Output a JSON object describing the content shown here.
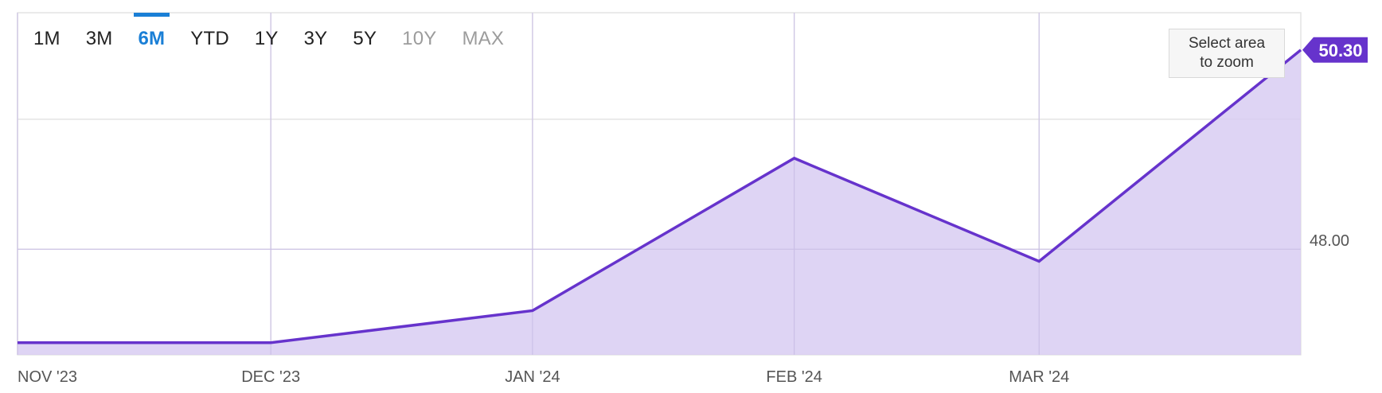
{
  "range_selector": {
    "options": [
      {
        "label": "1M",
        "state": "normal"
      },
      {
        "label": "3M",
        "state": "normal"
      },
      {
        "label": "6M",
        "state": "active"
      },
      {
        "label": "YTD",
        "state": "normal"
      },
      {
        "label": "1Y",
        "state": "normal"
      },
      {
        "label": "3Y",
        "state": "normal"
      },
      {
        "label": "5Y",
        "state": "normal"
      },
      {
        "label": "10Y",
        "state": "disabled"
      },
      {
        "label": "MAX",
        "state": "disabled"
      }
    ],
    "active_color": "#1a7fd6"
  },
  "zoom_hint": "Select area\nto zoom",
  "chart_data": {
    "type": "area",
    "x": [
      "2023-11-01",
      "2023-12-01",
      "2024-01-01",
      "2024-02-01",
      "2024-03-01",
      "2024-04-01"
    ],
    "values": [
      46.92,
      46.92,
      47.29,
      49.05,
      47.86,
      50.3
    ],
    "x_ticks": [
      {
        "date": "2023-11-01",
        "label": "NOV '23"
      },
      {
        "date": "2023-12-01",
        "label": "DEC '23"
      },
      {
        "date": "2024-01-01",
        "label": "JAN '24"
      },
      {
        "date": "2024-02-01",
        "label": "FEB '24"
      },
      {
        "date": "2024-03-01",
        "label": "MAR '24"
      }
    ],
    "y_ticks": [
      {
        "value": 48.0,
        "label": "48.00"
      }
    ],
    "ylim": [
      46.78,
      50.73
    ],
    "last_value_label": "50.30",
    "line_color": "#6633cc",
    "fill_color": "#d8ccf2",
    "grid": true,
    "grid_color": "#e4e4e4"
  }
}
